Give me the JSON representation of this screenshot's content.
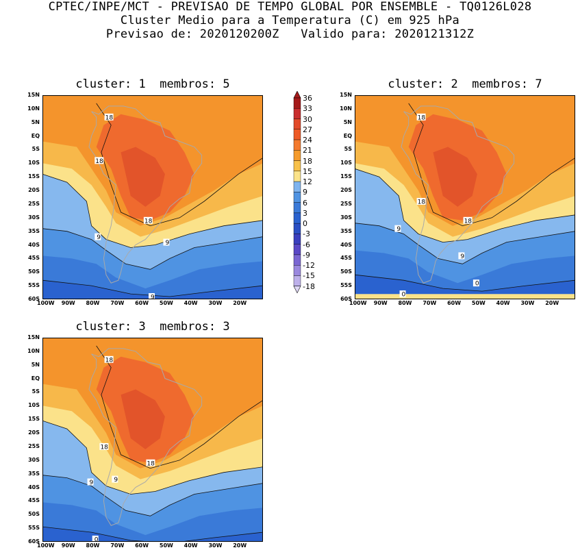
{
  "header": {
    "line1": "CPTEC/INPE/MCT - PREVISAO DE TEMPO GLOBAL POR ENSEMBLE - TQ0126L028",
    "line2": "Cluster Medio para a Temperatura (C) em 925 hPa",
    "line3": "Previsao de: 2020120200Z   Valido para: 2020121312Z"
  },
  "panels": [
    {
      "title": "cluster: 1  membros: 5",
      "contour_labels": [
        "18",
        "18",
        "18",
        "9",
        "9",
        "9"
      ]
    },
    {
      "title": "cluster: 2  membros: 7",
      "contour_labels": [
        "18",
        "18",
        "18",
        "9",
        "9",
        "0",
        "0"
      ]
    },
    {
      "title": "cluster: 3  membros: 3",
      "contour_labels": [
        "18",
        "18",
        "18",
        "9",
        "9",
        "0"
      ]
    }
  ],
  "lat_labels": [
    "15N",
    "10N",
    "5N",
    "EQ",
    "5S",
    "10S",
    "15S",
    "20S",
    "25S",
    "30S",
    "35S",
    "40S",
    "45S",
    "50S",
    "55S",
    "60S"
  ],
  "lon_labels": [
    "100W",
    "90W",
    "80W",
    "70W",
    "60W",
    "50W",
    "40W",
    "30W",
    "20W"
  ],
  "colorbar": {
    "labels": [
      "36",
      "33",
      "30",
      "27",
      "24",
      "21",
      "18",
      "15",
      "12",
      "9",
      "6",
      "3",
      "0",
      "-3",
      "-6",
      "-9",
      "-12",
      "-15",
      "-18"
    ],
    "colors": [
      "#a51a1a",
      "#c92e2e",
      "#e24a2a",
      "#ee5a26",
      "#f47a2e",
      "#f59b2c",
      "#f8c14a",
      "#fbe38a",
      "#7fb4ee",
      "#4f93e2",
      "#3a7ad8",
      "#2a62cf",
      "#2a4fc4",
      "#3a3fbe",
      "#5a48c6",
      "#7a66d2",
      "#9a88de",
      "#bdb0ea",
      "#ddd6f4"
    ]
  }
}
